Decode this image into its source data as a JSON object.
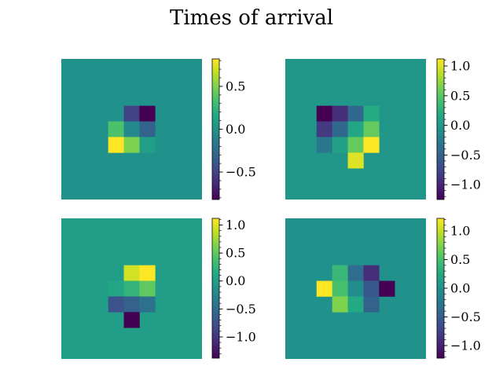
{
  "title": "Times of arrival",
  "chart_data": [
    {
      "type": "heatmap",
      "panel": "top-left",
      "grid_size": [
        9,
        9
      ],
      "clim": [
        -0.82,
        0.82
      ],
      "background_value": 0.0,
      "colormap": "viridis",
      "cells": [
        {
          "row": 3,
          "col": 4,
          "value": -0.5
        },
        {
          "row": 3,
          "col": 5,
          "value": -0.82
        },
        {
          "row": 4,
          "col": 3,
          "value": 0.35
        },
        {
          "row": 4,
          "col": 4,
          "value": -0.05
        },
        {
          "row": 4,
          "col": 5,
          "value": -0.3
        },
        {
          "row": 5,
          "col": 3,
          "value": 0.82
        },
        {
          "row": 5,
          "col": 4,
          "value": 0.5
        },
        {
          "row": 5,
          "col": 5,
          "value": 0.1
        }
      ],
      "colorbar_ticks": [
        {
          "value": 0.5,
          "label": "0.5"
        },
        {
          "value": 0.0,
          "label": "0.0"
        },
        {
          "value": -0.5,
          "label": "−0.5"
        }
      ]
    },
    {
      "type": "heatmap",
      "panel": "top-right",
      "grid_size": [
        9,
        9
      ],
      "clim": [
        -1.25,
        1.12
      ],
      "background_value": 0.0,
      "colormap": "viridis",
      "cells": [
        {
          "row": 3,
          "col": 2,
          "value": -1.25
        },
        {
          "row": 3,
          "col": 3,
          "value": -0.95
        },
        {
          "row": 3,
          "col": 4,
          "value": -0.45
        },
        {
          "row": 3,
          "col": 5,
          "value": 0.2
        },
        {
          "row": 4,
          "col": 2,
          "value": -0.85
        },
        {
          "row": 4,
          "col": 3,
          "value": -0.45
        },
        {
          "row": 4,
          "col": 4,
          "value": 0.15
        },
        {
          "row": 4,
          "col": 5,
          "value": 0.55
        },
        {
          "row": 5,
          "col": 2,
          "value": -0.3
        },
        {
          "row": 5,
          "col": 3,
          "value": 0.1
        },
        {
          "row": 5,
          "col": 4,
          "value": 0.55
        },
        {
          "row": 5,
          "col": 5,
          "value": 1.12
        },
        {
          "row": 6,
          "col": 4,
          "value": 1.0
        }
      ],
      "colorbar_ticks": [
        {
          "value": 1.0,
          "label": "1.0"
        },
        {
          "value": 0.5,
          "label": "0.5"
        },
        {
          "value": 0.0,
          "label": "0.0"
        },
        {
          "value": -0.5,
          "label": "−0.5"
        },
        {
          "value": -1.0,
          "label": "−1.0"
        }
      ]
    },
    {
      "type": "heatmap",
      "panel": "bottom-left",
      "grid_size": [
        9,
        9
      ],
      "clim": [
        -1.38,
        1.12
      ],
      "background_value": 0.0,
      "colormap": "viridis",
      "cells": [
        {
          "row": 3,
          "col": 4,
          "value": 0.95
        },
        {
          "row": 3,
          "col": 5,
          "value": 1.12
        },
        {
          "row": 4,
          "col": 3,
          "value": 0.1
        },
        {
          "row": 4,
          "col": 4,
          "value": 0.25
        },
        {
          "row": 4,
          "col": 5,
          "value": 0.5
        },
        {
          "row": 5,
          "col": 3,
          "value": -0.75
        },
        {
          "row": 5,
          "col": 4,
          "value": -0.6
        },
        {
          "row": 5,
          "col": 5,
          "value": -0.45
        },
        {
          "row": 6,
          "col": 4,
          "value": -1.38
        }
      ],
      "colorbar_ticks": [
        {
          "value": 1.0,
          "label": "1.0"
        },
        {
          "value": 0.5,
          "label": "0.5"
        },
        {
          "value": 0.0,
          "label": "0.0"
        },
        {
          "value": -0.5,
          "label": "−0.5"
        },
        {
          "value": -1.0,
          "label": "−1.0"
        }
      ]
    },
    {
      "type": "heatmap",
      "panel": "bottom-right",
      "grid_size": [
        9,
        9
      ],
      "clim": [
        -1.22,
        1.22
      ],
      "background_value": 0.0,
      "colormap": "viridis",
      "cells": [
        {
          "row": 3,
          "col": 3,
          "value": 0.4
        },
        {
          "row": 3,
          "col": 4,
          "value": -0.35
        },
        {
          "row": 3,
          "col": 5,
          "value": -0.9
        },
        {
          "row": 4,
          "col": 2,
          "value": 1.22
        },
        {
          "row": 4,
          "col": 3,
          "value": 0.5
        },
        {
          "row": 4,
          "col": 4,
          "value": -0.05
        },
        {
          "row": 4,
          "col": 5,
          "value": -0.55
        },
        {
          "row": 4,
          "col": 6,
          "value": -1.22
        },
        {
          "row": 5,
          "col": 3,
          "value": 0.75
        },
        {
          "row": 5,
          "col": 4,
          "value": 0.25
        },
        {
          "row": 5,
          "col": 5,
          "value": -0.45
        }
      ],
      "colorbar_ticks": [
        {
          "value": 1.0,
          "label": "1.0"
        },
        {
          "value": 0.5,
          "label": "0.5"
        },
        {
          "value": 0.0,
          "label": "0.0"
        },
        {
          "value": -0.5,
          "label": "−0.5"
        },
        {
          "value": -1.0,
          "label": "−1.0"
        }
      ]
    }
  ]
}
